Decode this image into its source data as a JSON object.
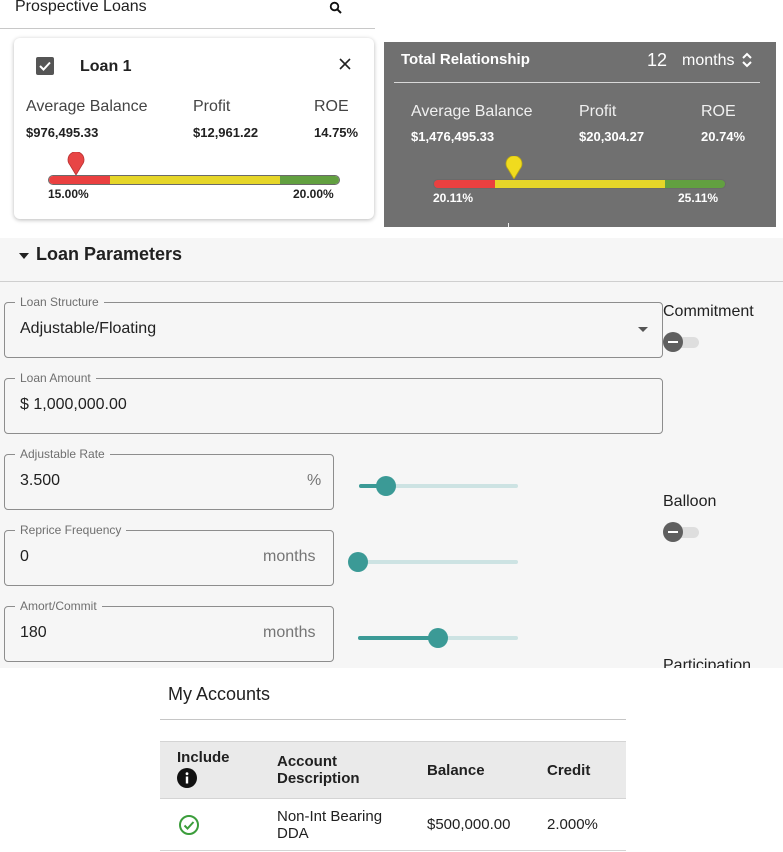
{
  "prospective": {
    "title": "Prospective Loans"
  },
  "loan_card": {
    "name": "Loan 1",
    "checked": true,
    "metrics": {
      "avg_balance_label": "Average Balance",
      "avg_balance_value": "$976,495.33",
      "profit_label": "Profit",
      "profit_value": "$12,961.22",
      "roe_label": "ROE",
      "roe_value": "14.75%"
    },
    "range": {
      "min_label": "15.00%",
      "max_label": "20.00%"
    }
  },
  "total_relationship": {
    "title": "Total Relationship",
    "months_value": "12",
    "months_label": "months",
    "metrics": {
      "avg_balance_label": "Average Balance",
      "avg_balance_value": "$1,476,495.33",
      "profit_label": "Profit",
      "profit_value": "$20,304.27",
      "roe_label": "ROE",
      "roe_value": "20.74%"
    },
    "range": {
      "min_label": "20.11%",
      "max_label": "25.11%"
    }
  },
  "loan_parameters": {
    "section_title": "Loan Parameters",
    "loan_structure": {
      "label": "Loan Structure",
      "value": "Adjustable/Floating"
    },
    "loan_amount": {
      "label": "Loan Amount",
      "value": "$ 1,000,000.00"
    },
    "adjustable_rate": {
      "label": "Adjustable Rate",
      "value": "3.500",
      "suffix": "%",
      "slider_fraction": 0.17
    },
    "reprice_frequency": {
      "label": "Reprice Frequency",
      "value": "0",
      "suffix": "months",
      "slider_fraction": 0.0
    },
    "amort_commit": {
      "label": "Amort/Commit",
      "value": "180",
      "suffix": "months",
      "slider_fraction": 0.5
    },
    "commitment_label": "Commitment",
    "balloon_label": "Balloon",
    "participation_label": "Participation"
  },
  "my_accounts": {
    "title": "My Accounts",
    "columns": {
      "include": "Include",
      "description_line1": "Account",
      "description_line2": "Description",
      "balance": "Balance",
      "credit": "Credit"
    },
    "rows": [
      {
        "included": true,
        "description_line1": "Non-Int Bearing",
        "description_line2": "DDA",
        "balance": "$500,000.00",
        "credit": "2.000%"
      }
    ]
  },
  "colors": {
    "accent_teal": "#3b9a96",
    "range_red": "#ea4040",
    "range_yellow": "#e6d629",
    "range_green": "#62a040",
    "pin_red": "#e84545",
    "pin_yellow": "#f0db1e",
    "check_green": "#3b9d3b"
  }
}
